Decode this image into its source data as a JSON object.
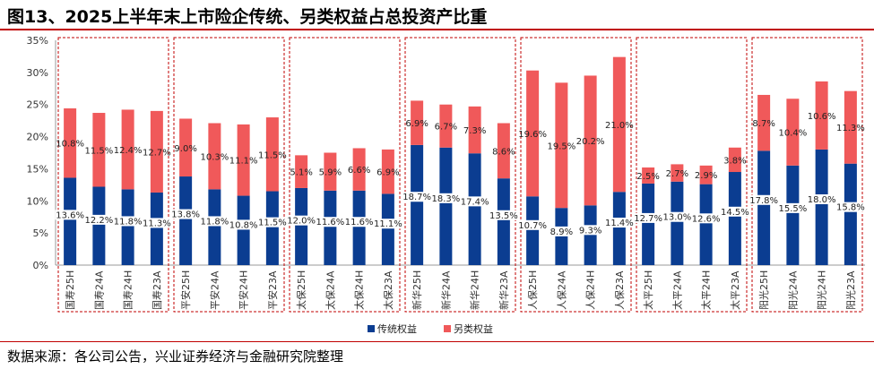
{
  "title": "图13、2025上半年末上市险企传统、另类权益占总投资产比重",
  "source": "数据来源：各公司公告，兴业证券经济与金融研究院整理",
  "colors": {
    "traditional": "#0b3d91",
    "alternative": "#f0595a",
    "group_border": "#c00000"
  },
  "chart_data": {
    "type": "bar",
    "stacked": true,
    "categories": [
      "国寿25H",
      "国寿24A",
      "国寿24H",
      "国寿23A",
      "平安25H",
      "平安24A",
      "平安24H",
      "平安23A",
      "太保25H",
      "太保24A",
      "太保24H",
      "太保23A",
      "新华25H",
      "新华24A",
      "新华24H",
      "新华23A",
      "人保25H",
      "人保24A",
      "人保24H",
      "人保23A",
      "太平25H",
      "太平24A",
      "太平24H",
      "太平23A",
      "阳光25H",
      "阳光24A",
      "阳光24H",
      "阳光23A"
    ],
    "series": [
      {
        "name": "传统权益",
        "values": [
          13.6,
          12.2,
          11.8,
          11.3,
          13.8,
          11.8,
          10.8,
          11.5,
          12.0,
          11.6,
          11.6,
          11.1,
          18.7,
          18.3,
          17.4,
          13.5,
          10.7,
          8.9,
          9.3,
          11.4,
          12.7,
          13.0,
          12.6,
          14.5,
          17.8,
          15.5,
          18.0,
          15.8
        ],
        "labels": [
          "13.6%",
          "12.2%",
          "11.8%",
          "11.3%",
          "13.8%",
          "11.8%",
          "10.8%",
          "11.5%",
          "12.0%",
          "11.6%",
          "11.6%",
          "11.1%",
          "18.7%",
          "18.3%",
          "17.4%",
          "13.5%",
          "10.7%",
          "8.9%",
          "9.3%",
          "11.4%",
          "12.7%",
          "13.0%",
          "12.6%",
          "14.5%",
          "17.8%",
          "15.5%",
          "18.0%",
          "15.8%"
        ]
      },
      {
        "name": "另类权益",
        "values": [
          10.8,
          11.5,
          12.4,
          12.7,
          9.0,
          10.3,
          11.1,
          11.5,
          5.1,
          5.9,
          6.6,
          6.9,
          6.9,
          6.7,
          7.3,
          8.6,
          19.6,
          19.5,
          20.2,
          21.0,
          2.5,
          2.7,
          2.9,
          3.8,
          8.7,
          10.4,
          10.6,
          11.3
        ],
        "labels": [
          "10.8%",
          "11.5%",
          "12.4%",
          "12.7%",
          "9.0%",
          "10.3%",
          "11.1%",
          "11.5%",
          "5.1%",
          "5.9%",
          "6.6%",
          "6.9%",
          "6.9%",
          "6.7%",
          "7.3%",
          "8.6%",
          "19.6%",
          "19.5%",
          "20.2%",
          "21.0%",
          "2.5%",
          "2.7%",
          "2.9%",
          "3.8%",
          "8.7%",
          "10.4%",
          "10.6%",
          "11.3%"
        ]
      }
    ],
    "ylim": [
      0,
      35
    ],
    "yticks": [
      "0%",
      "5%",
      "10%",
      "15%",
      "20%",
      "25%",
      "30%",
      "35%"
    ],
    "legend_position": "bottom"
  }
}
